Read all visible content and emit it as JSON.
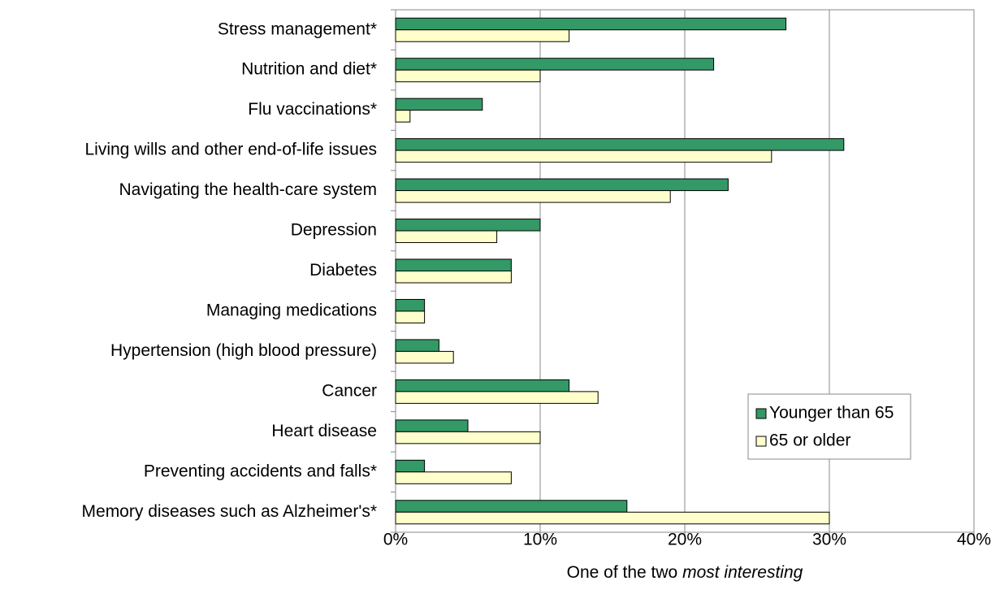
{
  "chart_data": {
    "type": "hbar",
    "categories": [
      "Stress management*",
      "Nutrition and diet*",
      "Flu vaccinations*",
      "Living wills and other end-of-life issues",
      "Navigating the health-care system",
      "Depression",
      "Diabetes",
      "Managing medications",
      "Hypertension (high blood pressure)",
      "Cancer",
      "Heart disease",
      "Preventing accidents and falls*",
      "Memory diseases such as Alzheimer's*"
    ],
    "series": [
      {
        "name": "Younger than 65",
        "color": "#339966",
        "values": [
          27,
          22,
          6,
          31,
          23,
          10,
          8,
          2,
          3,
          12,
          5,
          2,
          16
        ]
      },
      {
        "name": "65 or older",
        "color": "#ffffcc",
        "values": [
          12,
          10,
          1,
          26,
          19,
          7,
          8,
          2,
          4,
          14,
          10,
          8,
          30
        ]
      }
    ],
    "xlabel": "One of the two",
    "xlabel_emphasis": "most interesting",
    "xlim": [
      0,
      40
    ],
    "xticks": [
      {
        "value": 0,
        "label": "0%"
      },
      {
        "value": 10,
        "label": "10%"
      },
      {
        "value": 20,
        "label": "20%"
      },
      {
        "value": 30,
        "label": "30%"
      },
      {
        "value": 40,
        "label": "40%"
      }
    ],
    "grid": true,
    "legend": "right"
  }
}
